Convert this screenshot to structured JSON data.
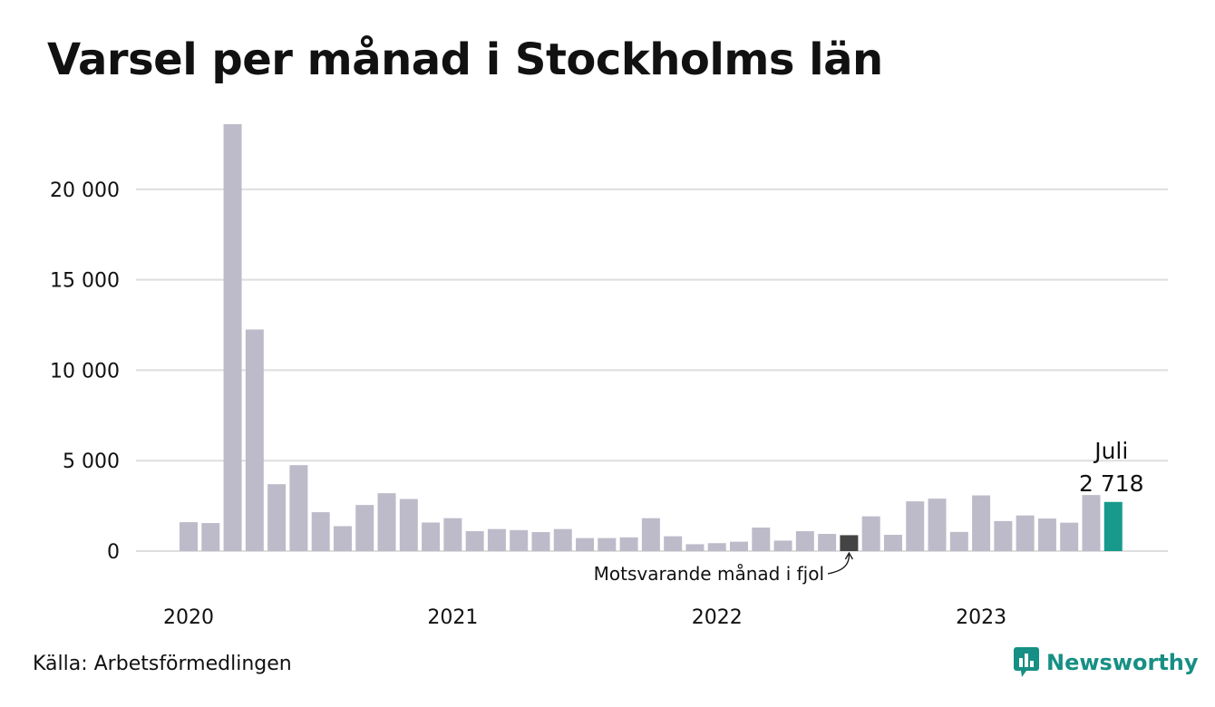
{
  "title": "Varsel per månad i Stockholms län",
  "source": "Källa: Arbetsförmedlingen",
  "brand": {
    "name": "Newsworthy",
    "icon": "newsworthy-logo-icon"
  },
  "colors": {
    "bar": "#bdbbc9",
    "highlight_prev": "#444444",
    "highlight_current": "#179a8c",
    "grid": "#dedede"
  },
  "chart_data": {
    "type": "bar",
    "ylim": [
      0,
      23600
    ],
    "yticks": [
      0,
      5000,
      10000,
      15000,
      20000
    ],
    "ytick_labels": [
      "0",
      "5 000",
      "10 000",
      "15 000",
      "20 000"
    ],
    "x_year_labels": [
      {
        "label": "2020",
        "month_index": 0
      },
      {
        "label": "2021",
        "month_index": 12
      },
      {
        "label": "2022",
        "month_index": 24
      },
      {
        "label": "2023",
        "month_index": 36
      }
    ],
    "values": [
      1600,
      1550,
      23600,
      12250,
      3700,
      4750,
      2150,
      1380,
      2550,
      3200,
      2880,
      1580,
      1820,
      1100,
      1220,
      1160,
      1050,
      1220,
      720,
      720,
      760,
      1820,
      820,
      380,
      440,
      520,
      1300,
      580,
      1100,
      950,
      880,
      1920,
      900,
      2750,
      2900,
      1060,
      3080,
      1660,
      1970,
      1800,
      1570,
      3100,
      2718
    ],
    "highlight_prev_index": 30,
    "highlight_current_index": 42,
    "current_label": {
      "month": "Juli",
      "value": "2 718"
    },
    "annotation": "Motsvarande månad i fjol"
  }
}
